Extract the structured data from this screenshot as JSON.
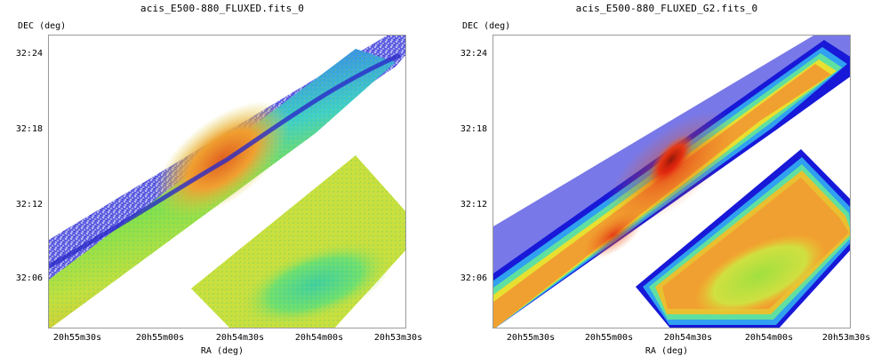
{
  "panels": [
    {
      "title": "acis_E500-880_FLUXED.fits_0",
      "y_axis_label": "DEC (deg)",
      "x_axis_label": "RA (deg)",
      "y_ticks": [
        "32:24",
        "32:18",
        "32:12",
        "32:06"
      ],
      "x_ticks": [
        "20h55m30s",
        "20h55m00s",
        "20h54m30s",
        "20h54m00s",
        "20h53m30s"
      ],
      "style": "noisy"
    },
    {
      "title": "acis_E500-880_FLUXED_G2.fits_0",
      "y_axis_label": "DEC (deg)",
      "x_axis_label": "RA (deg)",
      "y_ticks": [
        "32:24",
        "32:18",
        "32:12",
        "32:06"
      ],
      "x_ticks": [
        "20h55m30s",
        "20h55m00s",
        "20h54m30s",
        "20h54m00s",
        "20h53m30s"
      ],
      "style": "smoothed"
    }
  ],
  "colors": {
    "background_blue": "#5a5ae0",
    "edge_blue": "#2a2ad8",
    "cyan": "#20d0f0",
    "green": "#50e060",
    "yellow": "#e8e830",
    "orange": "#f0a020",
    "red": "#e03010",
    "dark": "#300000"
  }
}
